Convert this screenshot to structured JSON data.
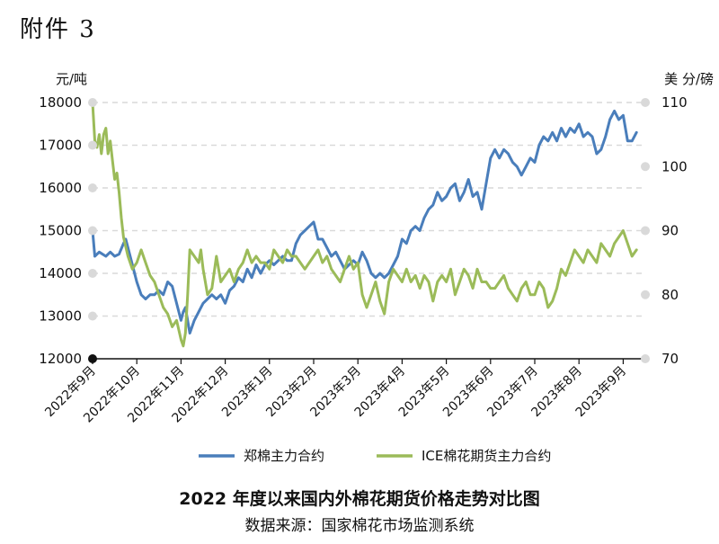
{
  "header_label": "附件 3",
  "chart_data": {
    "type": "line",
    "title": "2022 年度以来国内外棉花期货价格走势对比图",
    "source": "数据来源：国家棉花市场监测系统",
    "left_axis": {
      "label": "元/吨",
      "ylim": [
        12000,
        18000
      ],
      "ticks": [
        12000,
        13000,
        14000,
        15000,
        16000,
        17000,
        18000
      ]
    },
    "right_axis": {
      "label": "美 分/磅",
      "ylim": [
        70,
        110
      ],
      "ticks": [
        70,
        80,
        90,
        100,
        110
      ]
    },
    "x_ticks": [
      "2022年9月",
      "2022年10月",
      "2022年11月",
      "2022年12月",
      "2023年1月",
      "2023年2月",
      "2023年3月",
      "2023年4月",
      "2023年5月",
      "2023年6月",
      "2023年7月",
      "2023年8月",
      "2023年9月"
    ],
    "x_range": [
      0,
      12.4
    ],
    "grid": true,
    "legend_position": "bottom",
    "series": [
      {
        "name": "郑棉主力合约",
        "axis": "left",
        "color": "#4a7ebb",
        "x": [
          0,
          0.05,
          0.15,
          0.3,
          0.4,
          0.5,
          0.6,
          0.7,
          0.75,
          0.8,
          0.9,
          1.0,
          1.1,
          1.2,
          1.3,
          1.4,
          1.5,
          1.6,
          1.7,
          1.8,
          1.9,
          2.0,
          2.05,
          2.1,
          2.2,
          2.3,
          2.4,
          2.5,
          2.6,
          2.7,
          2.8,
          2.9,
          3.0,
          3.1,
          3.2,
          3.3,
          3.4,
          3.5,
          3.6,
          3.7,
          3.8,
          3.9,
          4.0,
          4.1,
          4.2,
          4.3,
          4.4,
          4.5,
          4.6,
          4.7,
          4.8,
          4.9,
          5.0,
          5.05,
          5.1,
          5.2,
          5.3,
          5.4,
          5.5,
          5.6,
          5.7,
          5.8,
          5.9,
          6.0,
          6.1,
          6.2,
          6.3,
          6.4,
          6.5,
          6.6,
          6.7,
          6.8,
          6.9,
          7.0,
          7.1,
          7.2,
          7.3,
          7.4,
          7.5,
          7.6,
          7.7,
          7.8,
          7.9,
          8.0,
          8.1,
          8.2,
          8.3,
          8.4,
          8.5,
          8.6,
          8.7,
          8.8,
          8.9,
          9.0,
          9.1,
          9.2,
          9.3,
          9.4,
          9.5,
          9.6,
          9.7,
          9.8,
          9.9,
          10.0,
          10.1,
          10.2,
          10.3,
          10.4,
          10.5,
          10.6,
          10.7,
          10.8,
          10.9,
          11.0,
          11.1,
          11.2,
          11.3,
          11.4,
          11.5,
          11.6,
          11.7,
          11.8,
          11.9,
          12.0,
          12.1,
          12.2,
          12.3
        ],
        "values": [
          15000,
          14400,
          14500,
          14400,
          14500,
          14400,
          14450,
          14700,
          14800,
          14600,
          14200,
          13800,
          13500,
          13400,
          13500,
          13500,
          13600,
          13500,
          13800,
          13700,
          13300,
          12900,
          13100,
          13200,
          12600,
          12900,
          13100,
          13300,
          13400,
          13500,
          13400,
          13500,
          13300,
          13600,
          13700,
          13900,
          13800,
          14100,
          13900,
          14200,
          14000,
          14200,
          14300,
          14200,
          14300,
          14400,
          14300,
          14300,
          14700,
          14900,
          15000,
          15100,
          15200,
          15000,
          14800,
          14800,
          14600,
          14400,
          14500,
          14300,
          14100,
          14200,
          14300,
          14200,
          14500,
          14300,
          14000,
          13900,
          14000,
          13900,
          14000,
          14200,
          14400,
          14800,
          14700,
          15000,
          15100,
          15000,
          15300,
          15500,
          15600,
          15900,
          15700,
          15800,
          16000,
          16100,
          15700,
          15900,
          16200,
          15800,
          15900,
          15500,
          16100,
          16700,
          16900,
          16700,
          16900,
          16800,
          16600,
          16500,
          16300,
          16500,
          16700,
          16600,
          17000,
          17200,
          17100,
          17300,
          17100,
          17400,
          17200,
          17400,
          17300,
          17500,
          17200,
          17300,
          17200,
          16800,
          16900,
          17200,
          17600,
          17800,
          17600,
          17700,
          17100,
          17100,
          17300
        ]
      },
      {
        "name": "ICE棉花期货主力合约",
        "axis": "right",
        "color": "#9bbb59",
        "x": [
          0,
          0.05,
          0.1,
          0.15,
          0.2,
          0.25,
          0.3,
          0.35,
          0.4,
          0.45,
          0.5,
          0.55,
          0.6,
          0.65,
          0.7,
          0.8,
          0.9,
          1.0,
          1.1,
          1.2,
          1.3,
          1.4,
          1.5,
          1.6,
          1.7,
          1.8,
          1.9,
          2.0,
          2.05,
          2.1,
          2.15,
          2.2,
          2.3,
          2.4,
          2.45,
          2.5,
          2.6,
          2.7,
          2.8,
          2.9,
          3.0,
          3.1,
          3.2,
          3.3,
          3.4,
          3.5,
          3.6,
          3.7,
          3.8,
          3.9,
          4.0,
          4.1,
          4.2,
          4.3,
          4.4,
          4.5,
          4.6,
          4.7,
          4.8,
          4.9,
          5.0,
          5.1,
          5.2,
          5.3,
          5.4,
          5.5,
          5.6,
          5.7,
          5.8,
          5.9,
          6.0,
          6.1,
          6.2,
          6.3,
          6.4,
          6.5,
          6.6,
          6.7,
          6.8,
          6.9,
          7.0,
          7.1,
          7.2,
          7.3,
          7.4,
          7.5,
          7.6,
          7.7,
          7.8,
          7.9,
          8.0,
          8.1,
          8.2,
          8.3,
          8.4,
          8.5,
          8.6,
          8.7,
          8.8,
          8.9,
          9.0,
          9.1,
          9.2,
          9.3,
          9.4,
          9.5,
          9.6,
          9.7,
          9.8,
          9.9,
          10.0,
          10.1,
          10.2,
          10.3,
          10.4,
          10.5,
          10.6,
          10.7,
          10.8,
          10.9,
          11.0,
          11.1,
          11.2,
          11.3,
          11.4,
          11.5,
          11.6,
          11.7,
          11.8,
          11.9,
          12.0,
          12.1,
          12.2,
          12.3
        ],
        "values": [
          110,
          104,
          103,
          105,
          102,
          105,
          106,
          102,
          104,
          101,
          98,
          99,
          96,
          92,
          89,
          86,
          84,
          85,
          87,
          85,
          83,
          82,
          80,
          78,
          77,
          75,
          76,
          73,
          72,
          74,
          80,
          87,
          86,
          85,
          87,
          84,
          80,
          81,
          86,
          82,
          83,
          84,
          82,
          84,
          85,
          87,
          85,
          86,
          85,
          85,
          84,
          87,
          86,
          85,
          87,
          86,
          86,
          85,
          84,
          85,
          86,
          87,
          85,
          86,
          84,
          83,
          82,
          84,
          86,
          84,
          85,
          80,
          78,
          80,
          82,
          79,
          77,
          82,
          84,
          83,
          82,
          84,
          82,
          83,
          81,
          83,
          82,
          79,
          82,
          83,
          82,
          84,
          80,
          82,
          84,
          83,
          81,
          84,
          82,
          82,
          81,
          81,
          82,
          83,
          81,
          80,
          79,
          81,
          82,
          80,
          80,
          82,
          81,
          78,
          79,
          81,
          84,
          83,
          85,
          87,
          86,
          85,
          87,
          86,
          85,
          88,
          87,
          86,
          88,
          89,
          90,
          88,
          86,
          87
        ]
      }
    ]
  }
}
